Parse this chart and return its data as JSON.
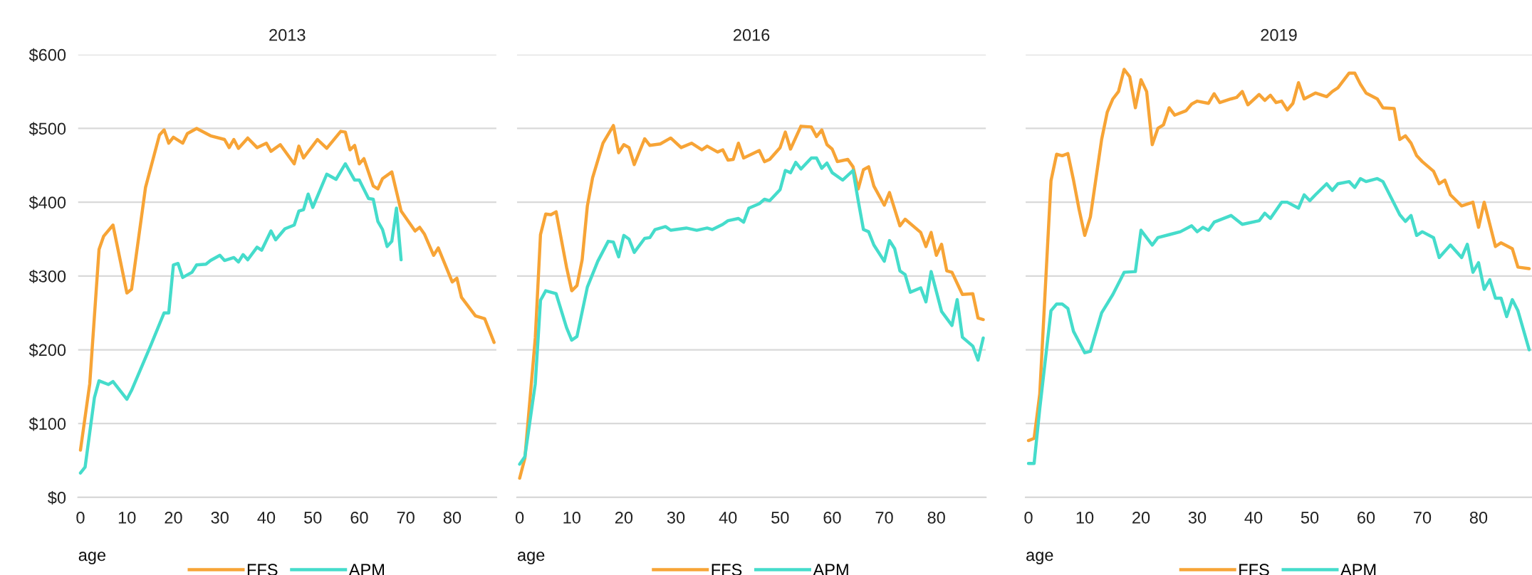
{
  "chart_data": [
    {
      "type": "line",
      "title": "2013",
      "xlabel": "age",
      "xlim": [
        -0.5,
        89.5
      ],
      "xticks": [
        0,
        10,
        20,
        30,
        40,
        50,
        60,
        70,
        80
      ],
      "ylim": [
        0,
        600
      ],
      "yticks": [
        {
          "value": 0,
          "label": "$0"
        },
        {
          "value": 100,
          "label": "$100"
        },
        {
          "value": 200,
          "label": "$200"
        },
        {
          "value": 300,
          "label": "$300"
        },
        {
          "value": 400,
          "label": "$400"
        },
        {
          "value": 500,
          "label": "$500"
        },
        {
          "value": 600,
          "label": "$600"
        }
      ],
      "grid": "y",
      "legend": "bottom",
      "series": [
        {
          "name": "FFS",
          "color": "#f7a436",
          "x": [
            0,
            2,
            4,
            5,
            7,
            10,
            11,
            14,
            17,
            18,
            19,
            20,
            22,
            23,
            25,
            28,
            31,
            32,
            33,
            34,
            36,
            38,
            40,
            41,
            43,
            46,
            47,
            48,
            51,
            53,
            56,
            57,
            58,
            59,
            60,
            61,
            63,
            64,
            65,
            67,
            69,
            72,
            73,
            74,
            76,
            77,
            80,
            81,
            82,
            85,
            87,
            89
          ],
          "values": [
            64,
            154,
            336,
            354,
            369,
            277,
            282,
            420,
            491,
            498,
            480,
            488,
            480,
            493,
            500,
            490,
            485,
            474,
            485,
            473,
            487,
            474,
            480,
            469,
            478,
            452,
            476,
            460,
            485,
            473,
            496,
            495,
            471,
            477,
            452,
            459,
            422,
            418,
            432,
            441,
            388,
            361,
            366,
            357,
            328,
            338,
            292,
            297,
            271,
            246,
            242,
            210
          ]
        },
        {
          "name": "APM",
          "color": "#45dccb",
          "x": [
            0,
            1,
            3,
            4,
            6,
            7,
            10,
            11,
            15,
            18,
            19,
            20,
            21,
            22,
            24,
            25,
            27,
            28,
            30,
            31,
            33,
            34,
            35,
            36,
            38,
            39,
            41,
            42,
            44,
            46,
            47,
            48,
            49,
            50,
            53,
            55,
            57,
            59,
            60,
            62,
            63,
            64,
            65,
            66,
            67,
            68,
            69
          ],
          "values": [
            33,
            41,
            135,
            158,
            153,
            157,
            133,
            145,
            204,
            250,
            250,
            315,
            317,
            298,
            305,
            315,
            316,
            321,
            328,
            321,
            325,
            319,
            329,
            322,
            339,
            335,
            361,
            349,
            364,
            369,
            388,
            390,
            411,
            393,
            438,
            431,
            452,
            430,
            430,
            405,
            404,
            374,
            363,
            340,
            347,
            392,
            322
          ]
        }
      ]
    },
    {
      "type": "line",
      "title": "2016",
      "xlabel": "age",
      "xlim": [
        -0.5,
        89.5
      ],
      "xticks": [
        0,
        10,
        20,
        30,
        40,
        50,
        60,
        70,
        80
      ],
      "ylim": [
        0,
        600
      ],
      "yticks": [
        0,
        100,
        200,
        300,
        400,
        500,
        600
      ],
      "grid": "y",
      "legend": "bottom",
      "tick_labels": "x",
      "series": [
        {
          "name": "FFS",
          "color": "#f7a436",
          "x": [
            0,
            1,
            3,
            4,
            5,
            6,
            7,
            9,
            10,
            11,
            12,
            13,
            14,
            16,
            18,
            19,
            20,
            21,
            22,
            24,
            25,
            27,
            29,
            31,
            33,
            35,
            36,
            38,
            39,
            40,
            41,
            42,
            43,
            46,
            47,
            48,
            50,
            51,
            52,
            54,
            56,
            57,
            58,
            59,
            60,
            61,
            63,
            64,
            65,
            66,
            67,
            68,
            70,
            71,
            73,
            74,
            77,
            78,
            79,
            80,
            81,
            82,
            83,
            85,
            87,
            88,
            89
          ],
          "values": [
            26,
            53,
            216,
            356,
            384,
            383,
            387,
            312,
            280,
            287,
            322,
            395,
            433,
            480,
            504,
            467,
            478,
            474,
            451,
            486,
            477,
            479,
            487,
            474,
            480,
            471,
            476,
            468,
            471,
            457,
            458,
            480,
            460,
            470,
            455,
            458,
            474,
            495,
            472,
            503,
            502,
            489,
            498,
            478,
            472,
            455,
            458,
            448,
            418,
            444,
            448,
            422,
            396,
            413,
            368,
            377,
            359,
            340,
            359,
            328,
            343,
            307,
            305,
            275,
            276,
            243,
            241
          ]
        },
        {
          "name": "APM",
          "color": "#45dccb",
          "x": [
            0,
            1,
            3,
            4,
            5,
            7,
            9,
            10,
            11,
            13,
            15,
            17,
            18,
            19,
            20,
            21,
            22,
            24,
            25,
            26,
            28,
            29,
            31,
            32,
            34,
            36,
            37,
            39,
            40,
            42,
            43,
            44,
            46,
            47,
            48,
            50,
            51,
            52,
            53,
            54,
            56,
            57,
            58,
            59,
            60,
            62,
            64,
            65,
            66,
            67,
            68,
            70,
            71,
            72,
            73,
            74,
            75,
            77,
            78,
            79,
            81,
            83,
            84,
            85,
            87,
            88,
            89
          ],
          "values": [
            45,
            55,
            154,
            267,
            280,
            276,
            230,
            213,
            218,
            285,
            320,
            347,
            346,
            326,
            355,
            350,
            332,
            351,
            352,
            363,
            367,
            362,
            364,
            365,
            362,
            365,
            363,
            370,
            375,
            378,
            373,
            392,
            398,
            404,
            402,
            417,
            443,
            440,
            454,
            445,
            460,
            460,
            446,
            453,
            440,
            430,
            443,
            402,
            363,
            360,
            342,
            320,
            348,
            337,
            307,
            302,
            278,
            284,
            265,
            306,
            252,
            233,
            268,
            217,
            205,
            186,
            216
          ]
        }
      ]
    },
    {
      "type": "line",
      "title": "2019",
      "xlabel": "age",
      "xlim": [
        -0.5,
        89.5
      ],
      "xticks": [
        0,
        10,
        20,
        30,
        40,
        50,
        60,
        70,
        80
      ],
      "ylim": [
        0,
        600
      ],
      "yticks": [
        0,
        100,
        200,
        300,
        400,
        500,
        600
      ],
      "grid": "y",
      "legend": "bottom",
      "tick_labels": "x",
      "series": [
        {
          "name": "FFS",
          "color": "#f7a436",
          "x": [
            0,
            1,
            2,
            4,
            5,
            6,
            7,
            8,
            9,
            10,
            11,
            13,
            14,
            15,
            16,
            17,
            18,
            19,
            20,
            21,
            22,
            23,
            24,
            25,
            26,
            28,
            29,
            30,
            32,
            33,
            34,
            36,
            37,
            38,
            39,
            41,
            42,
            43,
            44,
            45,
            46,
            47,
            48,
            49,
            51,
            53,
            54,
            55,
            57,
            58,
            59,
            60,
            62,
            63,
            65,
            66,
            67,
            68,
            69,
            70,
            72,
            73,
            74,
            75,
            77,
            79,
            80,
            81,
            83,
            84,
            86,
            87,
            89
          ],
          "values": [
            77,
            80,
            140,
            429,
            465,
            463,
            466,
            430,
            390,
            355,
            380,
            485,
            522,
            540,
            550,
            580,
            570,
            528,
            566,
            550,
            478,
            500,
            505,
            528,
            518,
            524,
            533,
            537,
            534,
            547,
            535,
            540,
            542,
            550,
            532,
            546,
            538,
            545,
            535,
            537,
            525,
            534,
            562,
            540,
            548,
            543,
            550,
            555,
            575,
            575,
            560,
            548,
            540,
            528,
            527,
            485,
            490,
            480,
            463,
            455,
            442,
            425,
            430,
            410,
            395,
            400,
            366,
            400,
            340,
            345,
            337,
            312,
            310
          ]
        },
        {
          "name": "APM",
          "color": "#45dccb",
          "x": [
            0,
            1,
            2,
            4,
            5,
            6,
            7,
            8,
            10,
            11,
            13,
            15,
            17,
            19,
            20,
            22,
            23,
            25,
            27,
            29,
            30,
            31,
            32,
            33,
            36,
            38,
            41,
            42,
            43,
            45,
            46,
            48,
            49,
            50,
            51,
            53,
            54,
            55,
            57,
            58,
            59,
            60,
            62,
            63,
            66,
            67,
            68,
            69,
            70,
            72,
            73,
            75,
            77,
            78,
            79,
            80,
            81,
            82,
            83,
            84,
            85,
            86,
            87,
            89
          ],
          "values": [
            46,
            46,
            120,
            253,
            262,
            262,
            256,
            225,
            196,
            198,
            250,
            275,
            305,
            306,
            362,
            342,
            352,
            356,
            360,
            368,
            360,
            366,
            362,
            373,
            382,
            370,
            375,
            385,
            378,
            400,
            400,
            392,
            410,
            402,
            410,
            425,
            416,
            425,
            428,
            420,
            432,
            428,
            432,
            428,
            383,
            374,
            382,
            355,
            360,
            352,
            325,
            342,
            325,
            343,
            305,
            318,
            282,
            295,
            270,
            270,
            245,
            268,
            253,
            200
          ]
        }
      ]
    }
  ]
}
